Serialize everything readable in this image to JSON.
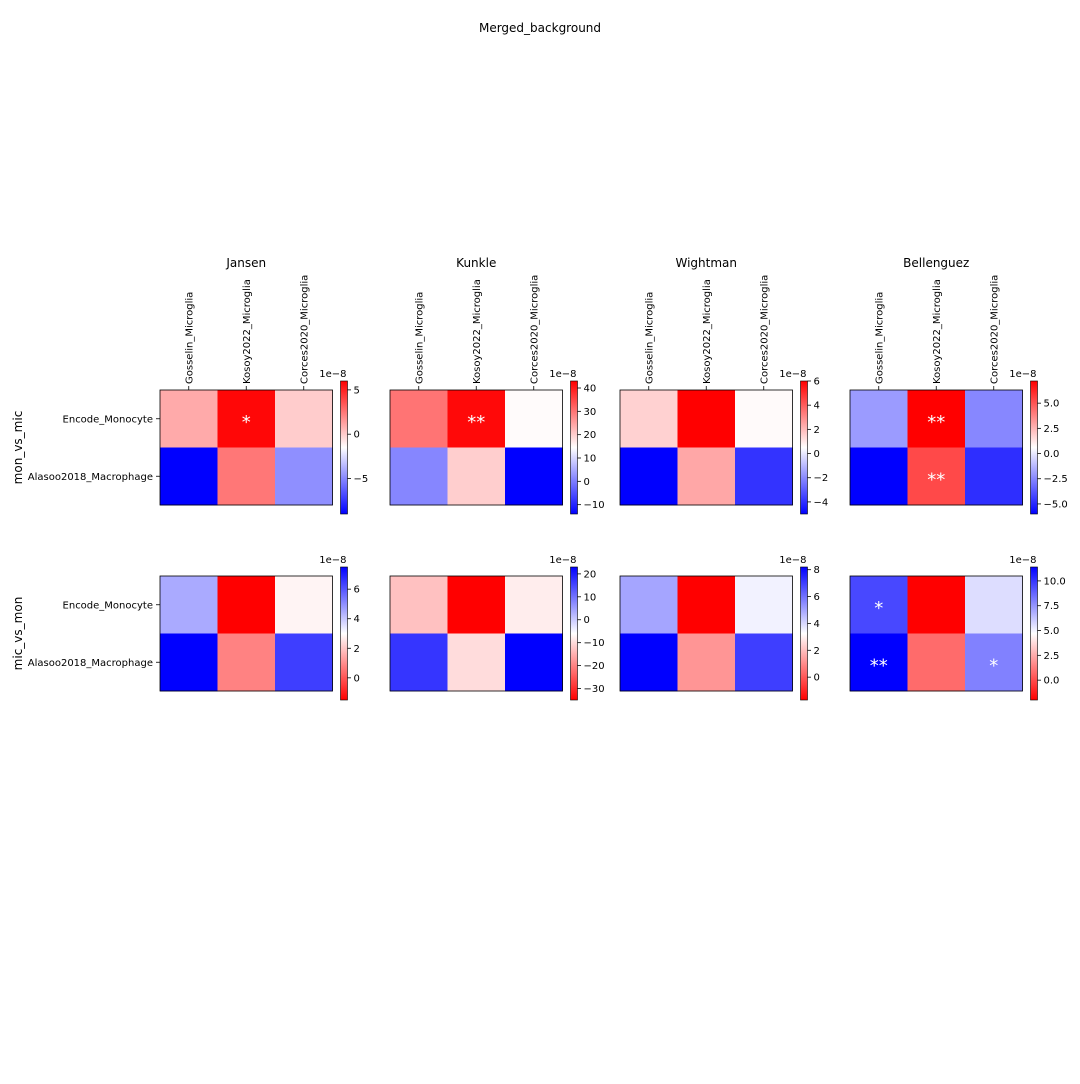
{
  "figure": {
    "title": "Merged_background"
  },
  "colors": {
    "red": "#ff0000",
    "white": "#ffffff",
    "blue": "#0000ff",
    "star": "#ffffff"
  },
  "chart_data": {
    "type": "heatmap",
    "title": "Merged_background",
    "row_groups": [
      "mon_vs_mic",
      "mic_vs_mon"
    ],
    "columns": [
      "Jansen",
      "Kunkle",
      "Wightman",
      "Bellenguez"
    ],
    "x_categories": [
      "Gosselin_Microglia",
      "Kosoy2022_Microglia",
      "Corces2020_Microglia"
    ],
    "y_categories": [
      "Encode_Monocyte",
      "Alasoo2018_Macrophage"
    ],
    "panels": [
      {
        "row": "mon_vs_mic",
        "column": "Jansen",
        "scale_label": "1e−8",
        "colormap": "bwr",
        "vmin": -9,
        "vmax": 6,
        "values": [
          [
            1.0,
            5.8,
            0.0
          ],
          [
            -9.0,
            2.5,
            -4.8
          ]
        ],
        "annotations": [
          [
            "",
            "*",
            ""
          ],
          [
            "",
            "",
            ""
          ]
        ],
        "ticks": [
          {
            "value": 5,
            "label": "5"
          },
          {
            "value": 0,
            "label": "0"
          },
          {
            "value": -5,
            "label": "−5"
          }
        ]
      },
      {
        "row": "mon_vs_mic",
        "column": "Kunkle",
        "scale_label": "1e−8",
        "colormap": "bwr",
        "vmin": -14,
        "vmax": 43,
        "values": [
          [
            30,
            42,
            15
          ],
          [
            1,
            20,
            -14
          ]
        ],
        "annotations": [
          [
            "",
            "**",
            ""
          ],
          [
            "",
            "",
            ""
          ]
        ],
        "ticks": [
          {
            "value": 40,
            "label": "40"
          },
          {
            "value": 30,
            "label": "30"
          },
          {
            "value": 20,
            "label": "20"
          },
          {
            "value": 10,
            "label": "10"
          },
          {
            "value": 0,
            "label": "0"
          },
          {
            "value": -10,
            "label": "−10"
          }
        ]
      },
      {
        "row": "mon_vs_mic",
        "column": "Wightman",
        "scale_label": "1e−8",
        "colormap": "bwr",
        "vmin": -5,
        "vmax": 6,
        "values": [
          [
            1.5,
            6.0,
            0.6
          ],
          [
            -5.0,
            2.4,
            -3.9
          ]
        ],
        "annotations": [
          [
            "",
            "",
            ""
          ],
          [
            "",
            "",
            ""
          ]
        ],
        "ticks": [
          {
            "value": 6,
            "label": "6"
          },
          {
            "value": 4,
            "label": "4"
          },
          {
            "value": 2,
            "label": "2"
          },
          {
            "value": 0,
            "label": "0"
          },
          {
            "value": -2,
            "label": "−2"
          },
          {
            "value": -4,
            "label": "−4"
          }
        ]
      },
      {
        "row": "mon_vs_mic",
        "column": "Bellenguez",
        "scale_label": "1e−8",
        "colormap": "bwr",
        "vmin": -6,
        "vmax": 7.2,
        "values": [
          [
            -2.0,
            7.2,
            -2.5
          ],
          [
            -6.0,
            5.3,
            -4.8
          ]
        ],
        "annotations": [
          [
            "",
            "**",
            ""
          ],
          [
            "",
            "**",
            ""
          ]
        ],
        "ticks": [
          {
            "value": 5.0,
            "label": "5.0"
          },
          {
            "value": 2.5,
            "label": "2.5"
          },
          {
            "value": 0.0,
            "label": "0.0"
          },
          {
            "value": -2.5,
            "label": "−2.5"
          },
          {
            "value": -5.0,
            "label": "−5.0"
          }
        ]
      },
      {
        "row": "mic_vs_mon",
        "column": "Jansen",
        "scale_label": "1e−8",
        "colormap": "rwb",
        "vmin": -1.5,
        "vmax": 7.5,
        "values": [
          [
            4.5,
            -1.5,
            2.8
          ],
          [
            7.5,
            0.8,
            6.4
          ]
        ],
        "annotations": [
          [
            "",
            "",
            ""
          ],
          [
            "",
            "",
            ""
          ]
        ],
        "ticks": [
          {
            "value": 6,
            "label": "6"
          },
          {
            "value": 4,
            "label": "4"
          },
          {
            "value": 2,
            "label": "2"
          },
          {
            "value": 0,
            "label": "0"
          }
        ]
      },
      {
        "row": "mic_vs_mon",
        "column": "Kunkle",
        "scale_label": "1e−8",
        "colormap": "rwb",
        "vmin": -35,
        "vmax": 23,
        "values": [
          [
            -13,
            -35,
            -8
          ],
          [
            17,
            -10,
            23
          ]
        ],
        "annotations": [
          [
            "",
            "",
            ""
          ],
          [
            "",
            "",
            ""
          ]
        ],
        "ticks": [
          {
            "value": 20,
            "label": "20"
          },
          {
            "value": 10,
            "label": "10"
          },
          {
            "value": 0,
            "label": "0"
          },
          {
            "value": -10,
            "label": "−10"
          },
          {
            "value": -20,
            "label": "−20"
          },
          {
            "value": -30,
            "label": "−30"
          }
        ]
      },
      {
        "row": "mic_vs_mon",
        "column": "Wightman",
        "scale_label": "1e−8",
        "colormap": "rwb",
        "vmin": -1.7,
        "vmax": 8.2,
        "values": [
          [
            5.0,
            -1.7,
            3.5
          ],
          [
            8.2,
            1.2,
            7.0
          ]
        ],
        "annotations": [
          [
            "",
            "",
            ""
          ],
          [
            "",
            "",
            ""
          ]
        ],
        "ticks": [
          {
            "value": 8,
            "label": "8"
          },
          {
            "value": 6,
            "label": "6"
          },
          {
            "value": 4,
            "label": "4"
          },
          {
            "value": 2,
            "label": "2"
          },
          {
            "value": 0,
            "label": "0"
          }
        ]
      },
      {
        "row": "mic_vs_mon",
        "column": "Bellenguez",
        "scale_label": "1e−8",
        "colormap": "rwb",
        "vmin": -2.0,
        "vmax": 11.4,
        "values": [
          [
            9.5,
            -2.0,
            5.6
          ],
          [
            11.4,
            0.8,
            8.0
          ]
        ],
        "annotations": [
          [
            "*",
            "",
            ""
          ],
          [
            "**",
            "",
            "*"
          ]
        ],
        "ticks": [
          {
            "value": 10.0,
            "label": "10.0"
          },
          {
            "value": 7.5,
            "label": "7.5"
          },
          {
            "value": 5.0,
            "label": "5.0"
          },
          {
            "value": 2.5,
            "label": "2.5"
          },
          {
            "value": 0.0,
            "label": "0.0"
          }
        ]
      }
    ],
    "grid": false
  }
}
